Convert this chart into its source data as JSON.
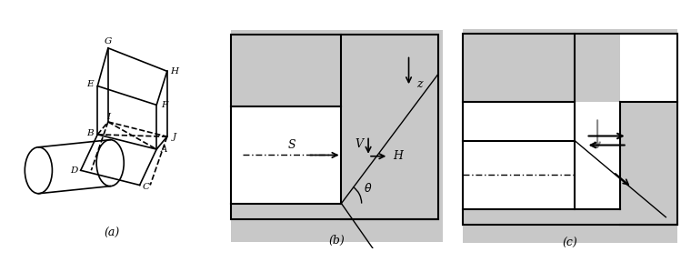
{
  "bg_color": "#cccccc",
  "white": "#ffffff",
  "black": "#000000",
  "gray": "#c8c8c8",
  "label_a": "(a)",
  "label_b": "(b)",
  "label_c": "(c)"
}
